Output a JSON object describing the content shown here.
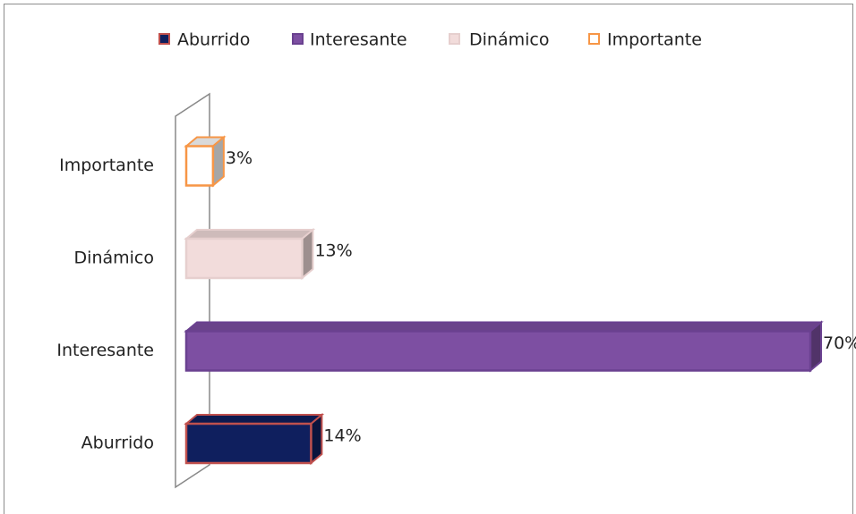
{
  "chart_data": {
    "type": "bar",
    "orientation": "horizontal",
    "categories": [
      "Aburrido",
      "Interesante",
      "Dinámico",
      "Importante"
    ],
    "values": [
      14,
      70,
      13,
      3
    ],
    "value_labels": [
      "14%",
      "70%",
      "13%",
      "3%"
    ],
    "colors": [
      "#0f1f5e",
      "#7d4fa2",
      "#f2dcdb",
      "#ffffff"
    ],
    "edge_colors": [
      "#c0504d",
      "#6a4190",
      "#e6cfce",
      "#f79646"
    ],
    "xlim": [
      0,
      70
    ],
    "legend": "top"
  }
}
